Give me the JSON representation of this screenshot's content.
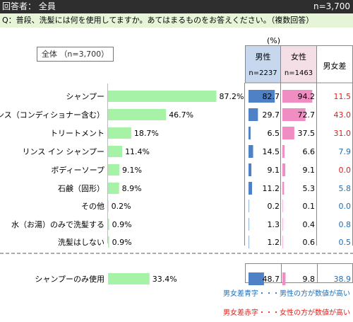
{
  "header": {
    "respondent": "回答者： 全員",
    "n": "n=3,700"
  },
  "question": "Q：普段、洗髪には何を使用してますか。あてはまるものをお答えください。（複数回答）",
  "pct_label": "(%)",
  "total_label": "全体 （n=3,700）",
  "columns": {
    "male": {
      "label": "男性",
      "n": "n=2237"
    },
    "female": {
      "label": "女性",
      "n": "n=1463"
    },
    "diff": {
      "label": "男女差"
    }
  },
  "legend": {
    "blue": "男女差青字・・・男性の方が数値が高い",
    "red": "男女差赤字・・・女性の方が数値が高い"
  },
  "colors": {
    "total_bar": "#a6f2a6",
    "male_bar": "#4f81c7",
    "female_bar": "#f08dc2",
    "blue_text": "#1e6fb8",
    "red_text": "#e0201b"
  },
  "chart_data": {
    "type": "bar",
    "categories": [
      "シャンプー",
      "リンス（コンディショナー含む）",
      "トリートメント",
      "リンス イン シャンプー",
      "ボディーソープ",
      "石鹸（固形）",
      "その他",
      "水（お湯）のみで洗髪する",
      "洗髪はしない",
      "シャンプーのみ使用"
    ],
    "total": [
      87.2,
      46.7,
      18.7,
      11.4,
      9.1,
      8.9,
      0.2,
      0.9,
      0.9,
      33.4
    ],
    "total_labels": [
      "87.2%",
      "46.7%",
      "18.7%",
      "11.4%",
      "9.1%",
      "8.9%",
      "0.2%",
      "0.9%",
      "0.9%",
      "33.4%"
    ],
    "male": [
      82.7,
      29.7,
      6.5,
      14.5,
      9.1,
      11.2,
      0.2,
      1.3,
      1.2,
      48.7
    ],
    "male_labels": [
      "82.7",
      "29.7",
      "6.5",
      "14.5",
      "9.1",
      "11.2",
      "0.2",
      "1.3",
      "1.2",
      "48.7"
    ],
    "female": [
      94.2,
      72.7,
      37.5,
      6.6,
      9.1,
      5.3,
      0.1,
      0.4,
      0.6,
      9.8
    ],
    "female_labels": [
      "94.2",
      "72.7",
      "37.5",
      "6.6",
      "9.1",
      "5.3",
      "0.1",
      "0.4",
      "0.6",
      "9.8"
    ],
    "diff": [
      11.5,
      43.0,
      31.0,
      7.9,
      0.0,
      5.8,
      0.0,
      0.8,
      0.5,
      38.9
    ],
    "diff_labels": [
      "11.5",
      "43.0",
      "31.0",
      "7.9",
      "0.0",
      "5.8",
      "0.0",
      "0.8",
      "0.5",
      "38.9"
    ],
    "diff_color": [
      "red",
      "red",
      "red",
      "blue",
      "red",
      "blue",
      "blue",
      "blue",
      "blue",
      "blue"
    ]
  }
}
